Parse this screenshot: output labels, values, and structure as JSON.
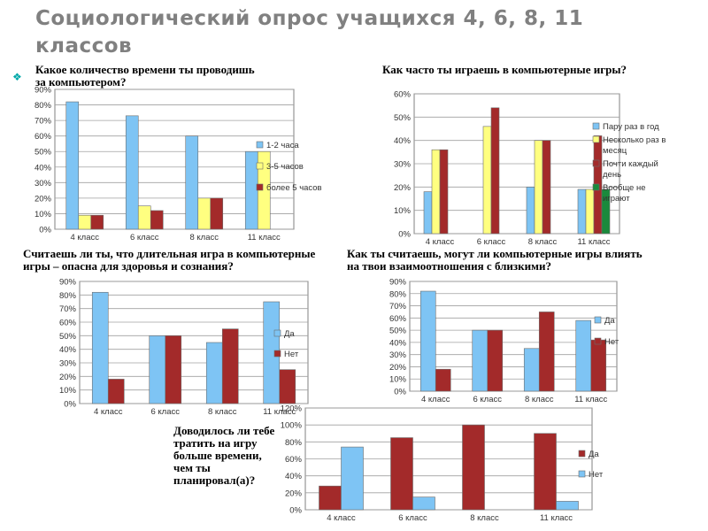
{
  "page": {
    "title": "Социологический опрос учащихся 4, 6, 8, 11 классов"
  },
  "questions": {
    "q1": "Какое количество времени ты проводишь за компьютером?",
    "q2": "Как часто ты играешь в компьютерные игры?",
    "q3": "Считаешь ли ты, что длительная игра в компьютерные игры – опасна для здоровья и сознания?",
    "q4": "Как ты считаешь, могут ли компьютерные игры влиять на твои взаимоотношения с близкими?",
    "q5": "Доводилось ли тебе  тратить на игру больше времени, чем ты планировал(а)?"
  },
  "chart_data": [
    {
      "type": "bar",
      "categories": [
        "4 класс",
        "6 класс",
        "8 класс",
        "11 класс"
      ],
      "ylim": [
        0,
        90
      ],
      "ystep": 10,
      "yunit": "%",
      "grid": true,
      "legend": "right",
      "series": [
        {
          "name": "1-2 часа",
          "color": "#7ec4f4",
          "values": [
            82,
            73,
            60,
            50
          ]
        },
        {
          "name": "3-5 часов",
          "color": "#ffff80",
          "values": [
            9,
            15,
            20,
            50
          ]
        },
        {
          "name": "более 5 часов",
          "color": "#a32a2a",
          "values": [
            9,
            12,
            20,
            0
          ]
        }
      ]
    },
    {
      "type": "bar",
      "categories": [
        "4 класс",
        "6 класс",
        "8 класс",
        "11 класс"
      ],
      "ylim": [
        0,
        60
      ],
      "ystep": 10,
      "yunit": "%",
      "grid": true,
      "legend": "right",
      "series": [
        {
          "name": "Пару раз в год",
          "color": "#7ec4f4",
          "values": [
            18,
            0,
            20,
            19
          ]
        },
        {
          "name": "Несколько раз в месяц",
          "color": "#ffff80",
          "values": [
            36,
            46,
            40,
            19
          ]
        },
        {
          "name": "Почти каждый день",
          "color": "#a32a2a",
          "values": [
            36,
            54,
            40,
            42
          ]
        },
        {
          "name": "Вообще не играют",
          "color": "#1a8a3c",
          "values": [
            0,
            0,
            0,
            19
          ]
        }
      ]
    },
    {
      "type": "bar",
      "categories": [
        "4 класс",
        "6 класс",
        "8 класс",
        "11 класс"
      ],
      "ylim": [
        0,
        90
      ],
      "ystep": 10,
      "yunit": "%",
      "grid": true,
      "legend": "right",
      "series": [
        {
          "name": "Да",
          "color": "#7ec4f4",
          "values": [
            82,
            50,
            45,
            75
          ]
        },
        {
          "name": "Нет",
          "color": "#a32a2a",
          "values": [
            18,
            50,
            55,
            25
          ]
        }
      ]
    },
    {
      "type": "bar",
      "categories": [
        "4 класс",
        "6 класс",
        "8 класс",
        "11 класс"
      ],
      "ylim": [
        0,
        90
      ],
      "ystep": 10,
      "yunit": "%",
      "grid": true,
      "legend": "right",
      "series": [
        {
          "name": "Да",
          "color": "#7ec4f4",
          "values": [
            82,
            50,
            35,
            58
          ]
        },
        {
          "name": "Нет",
          "color": "#a32a2a",
          "values": [
            18,
            50,
            65,
            42
          ]
        }
      ]
    },
    {
      "type": "bar",
      "categories": [
        "4 класс",
        "6 класс",
        "8 класс",
        "11 класс"
      ],
      "ylim": [
        0,
        120
      ],
      "ystep": 20,
      "yunit": "%",
      "grid": true,
      "legend": "right",
      "series": [
        {
          "name": "Да",
          "color": "#a32a2a",
          "values": [
            28,
            85,
            100,
            90
          ]
        },
        {
          "name": "Нет",
          "color": "#7ec4f4",
          "values": [
            74,
            15,
            0,
            10
          ]
        }
      ]
    }
  ]
}
